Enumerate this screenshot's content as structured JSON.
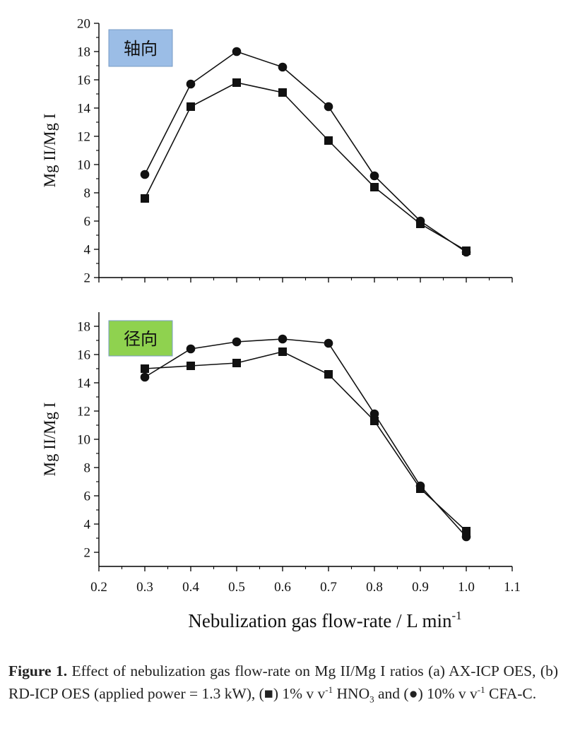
{
  "figure": {
    "xlabel_main": "Nebulization gas flow-rate / L min",
    "xlabel_sup": "-1",
    "caption": {
      "label": "Figure 1.",
      "part1": " Effect of nebulization gas flow-rate on Mg II/Mg I ratios (a) AX-ICP OES, (b) RD-ICP OES (applied power = 1.3 kW), (",
      "square_marker": "■",
      "part2": ") 1% v v",
      "sup1": "-1",
      "part3": " HNO",
      "sub3": "3",
      "part4": " and (",
      "circle_marker": "●",
      "part5": ") 10% v v",
      "sup2": "-1",
      "part6": " CFA-C."
    }
  },
  "chart_data": [
    {
      "type": "line",
      "tag": "轴向",
      "tag_color": "#9bbde6",
      "ylabel": "Mg II/Mg I",
      "xlim": [
        0.2,
        1.1
      ],
      "ylim": [
        2,
        20
      ],
      "yticks": [
        2,
        4,
        6,
        8,
        10,
        12,
        14,
        16,
        18,
        20
      ],
      "xticks": [
        0.2,
        0.3,
        0.4,
        0.5,
        0.6,
        0.7,
        0.8,
        0.9,
        1.0,
        1.1
      ],
      "show_xtick_labels": false,
      "x": [
        0.3,
        0.4,
        0.5,
        0.6,
        0.7,
        0.8,
        0.9,
        1.0
      ],
      "series": [
        {
          "marker": "circle",
          "values": [
            9.3,
            15.7,
            18.0,
            16.9,
            14.1,
            9.2,
            6.0,
            3.8
          ]
        },
        {
          "marker": "square",
          "values": [
            7.6,
            14.1,
            15.8,
            15.1,
            11.7,
            8.4,
            5.8,
            3.9
          ]
        }
      ]
    },
    {
      "type": "line",
      "tag": "径向",
      "tag_color": "#8fd24f",
      "ylabel": "Mg II/Mg I",
      "xlim": [
        0.2,
        1.1
      ],
      "ylim": [
        1,
        19
      ],
      "yticks": [
        2,
        4,
        6,
        8,
        10,
        12,
        14,
        16,
        18
      ],
      "xticks": [
        0.2,
        0.3,
        0.4,
        0.5,
        0.6,
        0.7,
        0.8,
        0.9,
        1.0,
        1.1
      ],
      "show_xtick_labels": true,
      "xtick_labels": [
        "0.2",
        "0.3",
        "0.4",
        "0.5",
        "0.6",
        "0.7",
        "0.8",
        "0.9",
        "1.0",
        "1.1"
      ],
      "x": [
        0.3,
        0.4,
        0.5,
        0.6,
        0.7,
        0.8,
        0.9,
        1.0
      ],
      "series": [
        {
          "marker": "circle",
          "values": [
            14.4,
            16.4,
            16.9,
            17.1,
            16.8,
            11.8,
            6.7,
            3.1
          ]
        },
        {
          "marker": "square",
          "values": [
            15.0,
            15.2,
            15.4,
            16.2,
            14.6,
            11.3,
            6.5,
            3.5
          ]
        }
      ]
    }
  ]
}
